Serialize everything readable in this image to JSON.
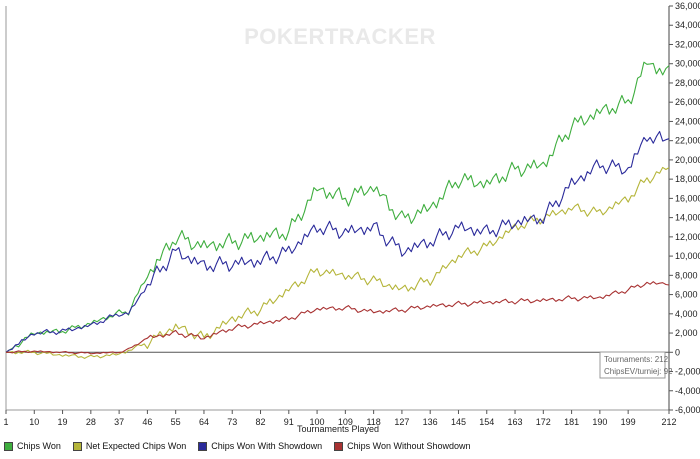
{
  "watermark": "POKERTRACKER",
  "info_box": {
    "tournaments": "Tournaments: 212",
    "chips_ev": "ChipsEV/turniej: 92"
  },
  "chart_data": {
    "type": "line",
    "title": "",
    "xlabel": "Tournaments Played",
    "ylabel": "",
    "xlim": [
      1,
      212
    ],
    "ylim": [
      -6000,
      36000
    ],
    "grid": false,
    "legend_position": "bottom-left",
    "x_ticks": [
      "1",
      "10",
      "19",
      "28",
      "37",
      "46",
      "55",
      "64",
      "73",
      "82",
      "91",
      "100",
      "109",
      "118",
      "127",
      "136",
      "145",
      "154",
      "163",
      "172",
      "181",
      "190",
      "199",
      "212"
    ],
    "y_ticks": [
      "36,000",
      "34,000",
      "32,000",
      "30,000",
      "28,000",
      "26,000",
      "24,000",
      "22,000",
      "20,000",
      "18,000",
      "16,000",
      "14,000",
      "12,000",
      "10,000",
      "8,000",
      "6,000",
      "4,000",
      "2,000",
      "0",
      "-2,000",
      "-4,000",
      "-6,000"
    ],
    "x": [
      1,
      10,
      19,
      28,
      37,
      40,
      46,
      55,
      64,
      73,
      82,
      91,
      100,
      109,
      118,
      127,
      136,
      145,
      154,
      163,
      172,
      181,
      190,
      199,
      205,
      210,
      212
    ],
    "series": [
      {
        "name": "Chips Won",
        "color": "#3fae3f",
        "values": [
          0,
          2000,
          2200,
          3000,
          4100,
          4200,
          8000,
          12000,
          11000,
          11500,
          12000,
          12500,
          17000,
          16000,
          17200,
          13800,
          15000,
          18000,
          17500,
          19000,
          19500,
          23500,
          25000,
          26000,
          30200,
          29200,
          29800
        ]
      },
      {
        "name": "Net Expected Chips Won",
        "color": "#b5b53a",
        "values": [
          0,
          0,
          -300,
          -500,
          -200,
          200,
          1000,
          2700,
          1500,
          3500,
          4500,
          6500,
          8500,
          8000,
          7500,
          6500,
          7500,
          10000,
          11000,
          13000,
          14000,
          15000,
          14500,
          16000,
          18000,
          18800,
          19200
        ]
      },
      {
        "name": "Chips Won With Showdown",
        "color": "#2b2b9b",
        "values": [
          0,
          2000,
          2200,
          2800,
          4000,
          4000,
          7000,
          10500,
          9000,
          9200,
          9500,
          10500,
          13000,
          12500,
          13000,
          10500,
          11500,
          13000,
          12500,
          13500,
          14000,
          17500,
          19500,
          19000,
          22500,
          22000,
          22200
        ]
      },
      {
        "name": "Chips Won Without Showdown",
        "color": "#a83232",
        "values": [
          0,
          100,
          0,
          -100,
          0,
          300,
          1500,
          2000,
          1500,
          2500,
          3000,
          3500,
          4500,
          4600,
          4200,
          4400,
          4800,
          5000,
          5200,
          5300,
          5400,
          5600,
          5700,
          6500,
          7200,
          7100,
          7000
        ]
      }
    ]
  }
}
